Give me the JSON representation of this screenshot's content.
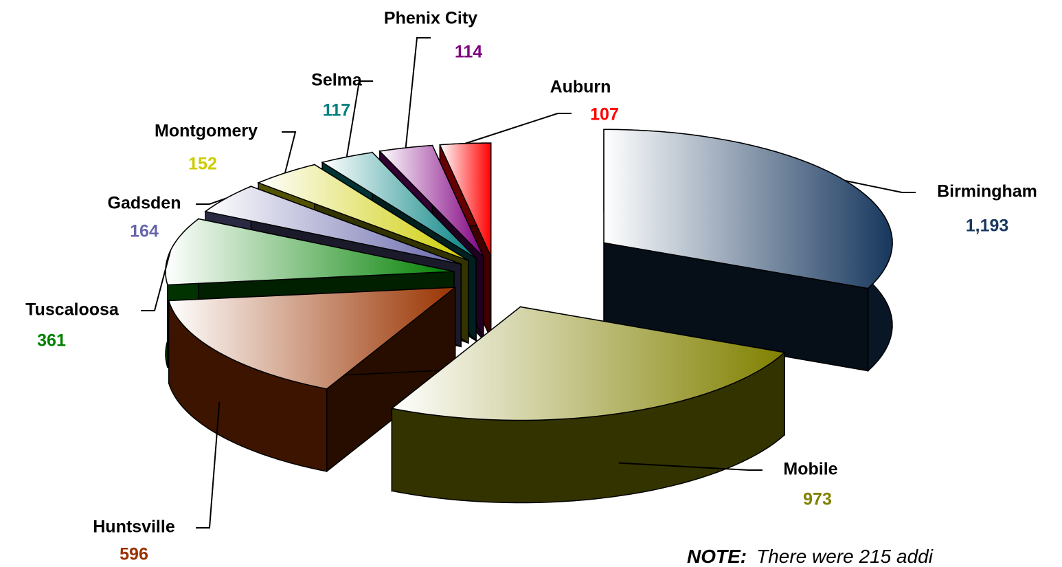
{
  "chart_data": {
    "type": "pie",
    "categories": [
      "Birmingham",
      "Mobile",
      "Huntsville",
      "Tuscaloosa",
      "Gadsden",
      "Montgomery",
      "Selma",
      "Phenix City",
      "Auburn"
    ],
    "values": [
      1193,
      973,
      596,
      361,
      164,
      152,
      117,
      114,
      107
    ],
    "value_labels": [
      "1,193",
      "973",
      "596",
      "361",
      "164",
      "152",
      "117",
      "114",
      "107"
    ],
    "colors": [
      "#17375e",
      "#808000",
      "#993300",
      "#008000",
      "#6666aa",
      "#cccc00",
      "#008080",
      "#800080",
      "#ff0000"
    ],
    "note": {
      "lead": "NOTE:",
      "text": "There were 215 addi"
    }
  }
}
